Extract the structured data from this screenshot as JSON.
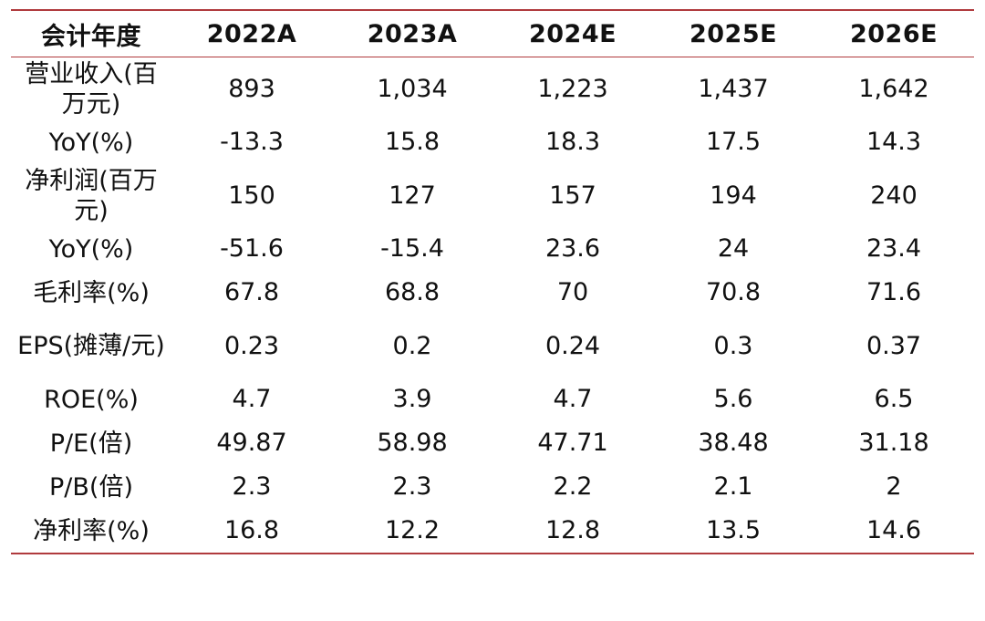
{
  "colors": {
    "rule": "#b03a3d",
    "text": "#111111",
    "background": "#ffffff"
  },
  "table": {
    "header": [
      "会计年度",
      "2022A",
      "2023A",
      "2024E",
      "2025E",
      "2026E"
    ],
    "rows": [
      {
        "label": "营业收入(百万元)",
        "values": [
          "893",
          "1,034",
          "1,223",
          "1,437",
          "1,642"
        ]
      },
      {
        "label": "YoY(%)",
        "values": [
          "-13.3",
          "15.8",
          "18.3",
          "17.5",
          "14.3"
        ]
      },
      {
        "label": "净利润(百万元)",
        "values": [
          "150",
          "127",
          "157",
          "194",
          "240"
        ]
      },
      {
        "label": "YoY(%)",
        "values": [
          "-51.6",
          "-15.4",
          "23.6",
          "24",
          "23.4"
        ]
      },
      {
        "label": "毛利率(%)",
        "values": [
          "67.8",
          "68.8",
          "70",
          "70.8",
          "71.6"
        ]
      },
      {
        "label": "EPS(摊薄/元)",
        "values": [
          "0.23",
          "0.2",
          "0.24",
          "0.3",
          "0.37"
        ]
      },
      {
        "label": "ROE(%)",
        "values": [
          "4.7",
          "3.9",
          "4.7",
          "5.6",
          "6.5"
        ]
      },
      {
        "label": "P/E(倍)",
        "values": [
          "49.87",
          "58.98",
          "47.71",
          "38.48",
          "31.18"
        ]
      },
      {
        "label": "P/B(倍)",
        "values": [
          "2.3",
          "2.3",
          "2.2",
          "2.1",
          "2"
        ]
      },
      {
        "label": "净利率(%)",
        "values": [
          "16.8",
          "12.2",
          "12.8",
          "13.5",
          "14.6"
        ]
      }
    ]
  }
}
